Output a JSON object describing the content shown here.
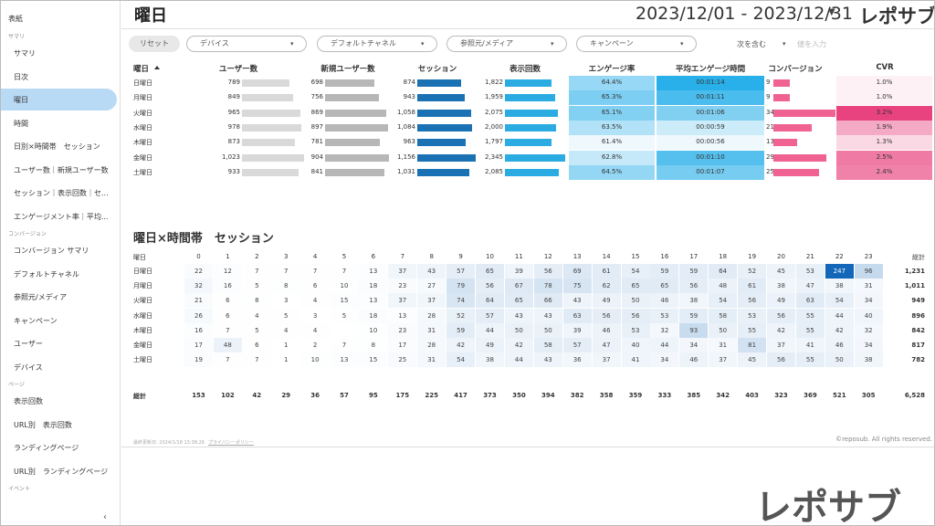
{
  "sidebar": {
    "top": "表紙",
    "groups": [
      {
        "title": "サマリ",
        "items": [
          "サマリ",
          "日次",
          "曜日",
          "時間",
          "日別×時間帯　セッション",
          "ユーザー数｜新規ユーザー数",
          "セッション｜表示回数｜セ...",
          "エンゲージメント率｜平均..."
        ]
      },
      {
        "title": "コンバージョン",
        "items": [
          "コンバージョン サマリ",
          "デフォルトチャネル",
          "参照元/メディア",
          "キャンペーン",
          "ユーザー",
          "デバイス"
        ]
      },
      {
        "title": "ページ",
        "items": [
          "表示回数",
          "URL別　表示回数",
          "ランディングページ",
          "URL別　ランディングページ"
        ]
      },
      {
        "title": "イベント",
        "items": []
      }
    ]
  },
  "header": {
    "title": "曜日",
    "date_range": "2023/12/01 - 2023/12/31",
    "logo": "レポサブ"
  },
  "filters": {
    "reset": "リセット",
    "dropdowns": [
      "デバイス",
      "デフォルトチャネル",
      "参照元/メディア",
      "キャンペーン"
    ],
    "match": "次を含む",
    "input_placeholder": "値を入力"
  },
  "table": {
    "headers": {
      "day": "曜日",
      "users": "ユーザー数",
      "new_users": "新規ユーザー数",
      "sessions": "セッション",
      "views": "表示回数",
      "engagement_rate": "エンゲージ率",
      "avg_time": "平均エンゲージ時間",
      "conversions": "コンバージョン",
      "cvr": "CVR"
    },
    "rows": [
      {
        "day": "日曜日",
        "users": 789,
        "new_users": 698,
        "sessions": 874,
        "views": {
          "value": 1822,
          "label": "1,822"
        },
        "engagement_rate": {
          "value": 64.4,
          "label": "64.4%"
        },
        "avg_time": "00:01:14",
        "conversions": 9,
        "cvr": {
          "value": 1.0,
          "label": "1.0%"
        }
      },
      {
        "day": "月曜日",
        "users": 849,
        "new_users": 756,
        "sessions": 943,
        "views": {
          "value": 1959,
          "label": "1,959"
        },
        "engagement_rate": {
          "value": 65.3,
          "label": "65.3%"
        },
        "avg_time": "00:01:11",
        "conversions": 9,
        "cvr": {
          "value": 1.0,
          "label": "1.0%"
        }
      },
      {
        "day": "火曜日",
        "users": 965,
        "new_users": 869,
        "sessions": {
          "value": 1058,
          "label": "1,058"
        },
        "views": {
          "value": 2075,
          "label": "2,075"
        },
        "engagement_rate": {
          "value": 65.1,
          "label": "65.1%"
        },
        "avg_time": "00:01:06",
        "conversions": 34,
        "cvr": {
          "value": 3.2,
          "label": "3.2%"
        }
      },
      {
        "day": "水曜日",
        "users": 978,
        "new_users": 897,
        "sessions": {
          "value": 1084,
          "label": "1,084"
        },
        "views": {
          "value": 2000,
          "label": "2,000"
        },
        "engagement_rate": {
          "value": 63.5,
          "label": "63.5%"
        },
        "avg_time": "00:00:59",
        "conversions": 21,
        "cvr": {
          "value": 1.9,
          "label": "1.9%"
        }
      },
      {
        "day": "木曜日",
        "users": 873,
        "new_users": 781,
        "sessions": 963,
        "views": {
          "value": 1797,
          "label": "1,797"
        },
        "engagement_rate": {
          "value": 61.4,
          "label": "61.4%"
        },
        "avg_time": "00:00:56",
        "conversions": 13,
        "cvr": {
          "value": 1.3,
          "label": "1.3%"
        }
      },
      {
        "day": "金曜日",
        "users": {
          "value": 1023,
          "label": "1,023"
        },
        "new_users": 904,
        "sessions": {
          "value": 1156,
          "label": "1,156"
        },
        "views": {
          "value": 2345,
          "label": "2,345"
        },
        "engagement_rate": {
          "value": 62.8,
          "label": "62.8%"
        },
        "avg_time": "00:01:10",
        "conversions": 29,
        "cvr": {
          "value": 2.5,
          "label": "2.5%"
        }
      },
      {
        "day": "土曜日",
        "users": 933,
        "new_users": 841,
        "sessions": {
          "value": 1031,
          "label": "1,031"
        },
        "views": {
          "value": 2085,
          "label": "2,085"
        },
        "engagement_rate": {
          "value": 64.5,
          "label": "64.5%"
        },
        "avg_time": "00:01:07",
        "conversions": 25,
        "cvr": {
          "value": 2.4,
          "label": "2.4%"
        }
      }
    ]
  },
  "heatmap": {
    "title": "曜日×時間帯　セッション",
    "row_header": "曜日",
    "hours": [
      0,
      1,
      2,
      3,
      4,
      5,
      6,
      7,
      8,
      9,
      10,
      11,
      12,
      13,
      14,
      15,
      16,
      17,
      18,
      19,
      20,
      21,
      22,
      23
    ],
    "total_header": "総計",
    "rows": [
      {
        "day": "日曜日",
        "values": [
          22,
          12,
          7,
          7,
          7,
          7,
          13,
          37,
          43,
          57,
          65,
          39,
          56,
          69,
          61,
          54,
          59,
          59,
          64,
          52,
          45,
          53,
          247,
          96
        ],
        "total": {
          "value": 1231,
          "label": "1,231"
        }
      },
      {
        "day": "月曜日",
        "values": [
          32,
          16,
          5,
          8,
          6,
          10,
          18,
          23,
          27,
          79,
          56,
          67,
          78,
          75,
          62,
          65,
          65,
          56,
          48,
          61,
          38,
          47,
          38,
          31
        ],
        "total": {
          "value": 1011,
          "label": "1,011"
        }
      },
      {
        "day": "火曜日",
        "values": [
          21,
          6,
          8,
          3,
          4,
          15,
          13,
          37,
          37,
          74,
          64,
          65,
          66,
          43,
          49,
          50,
          46,
          38,
          54,
          56,
          49,
          63,
          54,
          34
        ],
        "total": 949
      },
      {
        "day": "水曜日",
        "values": [
          26,
          6,
          4,
          5,
          3,
          5,
          18,
          13,
          28,
          52,
          57,
          43,
          43,
          63,
          56,
          56,
          53,
          59,
          58,
          53,
          56,
          55,
          44,
          40
        ],
        "total": 896
      },
      {
        "day": "木曜日",
        "values": [
          16,
          7,
          5,
          4,
          4,
          null,
          10,
          23,
          31,
          59,
          44,
          50,
          50,
          39,
          46,
          53,
          32,
          93,
          50,
          55,
          42,
          55,
          42,
          32
        ],
        "total": 842
      },
      {
        "day": "金曜日",
        "values": [
          17,
          48,
          6,
          1,
          2,
          7,
          8,
          17,
          28,
          42,
          49,
          42,
          58,
          57,
          47,
          40,
          44,
          34,
          31,
          81,
          37,
          41,
          46,
          34
        ],
        "total": 817
      },
      {
        "day": "土曜日",
        "values": [
          19,
          7,
          7,
          1,
          10,
          13,
          15,
          25,
          31,
          54,
          38,
          44,
          43,
          36,
          37,
          41,
          34,
          46,
          37,
          45,
          56,
          55,
          50,
          38
        ],
        "total": 782
      }
    ],
    "total_label": "総計",
    "column_totals": [
      153,
      102,
      42,
      29,
      36,
      57,
      95,
      175,
      225,
      417,
      373,
      350,
      394,
      382,
      358,
      359,
      333,
      385,
      342,
      403,
      323,
      369,
      521,
      305
    ],
    "grand_total": {
      "value": 6528,
      "label": "6,528"
    }
  },
  "footer": {
    "updated": "最終更新日: 2024/1/18 13:38:26",
    "privacy": "プライバシーポリシー",
    "copyright": "©reposub. All rights reserved."
  },
  "watermark": "レポサブ"
}
